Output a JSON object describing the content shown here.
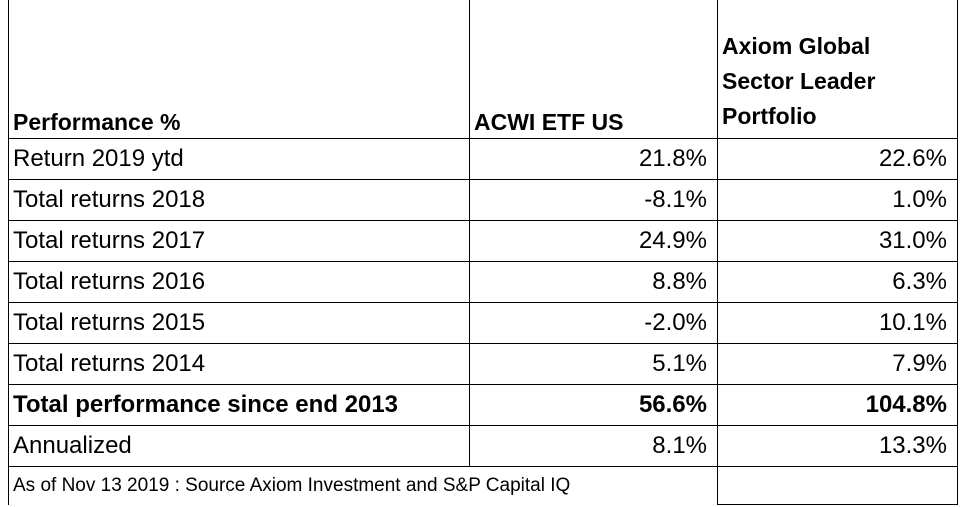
{
  "header": {
    "col1": "Performance %",
    "col2": "ACWI ETF US",
    "col3_lines": [
      "Axiom Global",
      "Sector Leader",
      "Portfolio"
    ]
  },
  "rows": [
    {
      "label": "Return 2019  ytd",
      "acwi": "21.8%",
      "axiom": "22.6%"
    },
    {
      "label": "Total returns 2018",
      "acwi": "-8.1%",
      "axiom": "1.0%"
    },
    {
      "label": "Total returns 2017",
      "acwi": "24.9%",
      "axiom": "31.0%"
    },
    {
      "label": "Total returns 2016",
      "acwi": "8.8%",
      "axiom": "6.3%"
    },
    {
      "label": "Total returns 2015",
      "acwi": "-2.0%",
      "axiom": "10.1%"
    },
    {
      "label": "Total returns 2014",
      "acwi": "5.1%",
      "axiom": "7.9%"
    },
    {
      "label": "Total performance since end 2013",
      "acwi": "56.6%",
      "axiom": "104.8%"
    },
    {
      "label": "Annualized",
      "acwi": "8.1%",
      "axiom": "13.3%"
    }
  ],
  "footnote": "As of Nov 13 2019 : Source Axiom Investment and S&P Capital IQ"
}
